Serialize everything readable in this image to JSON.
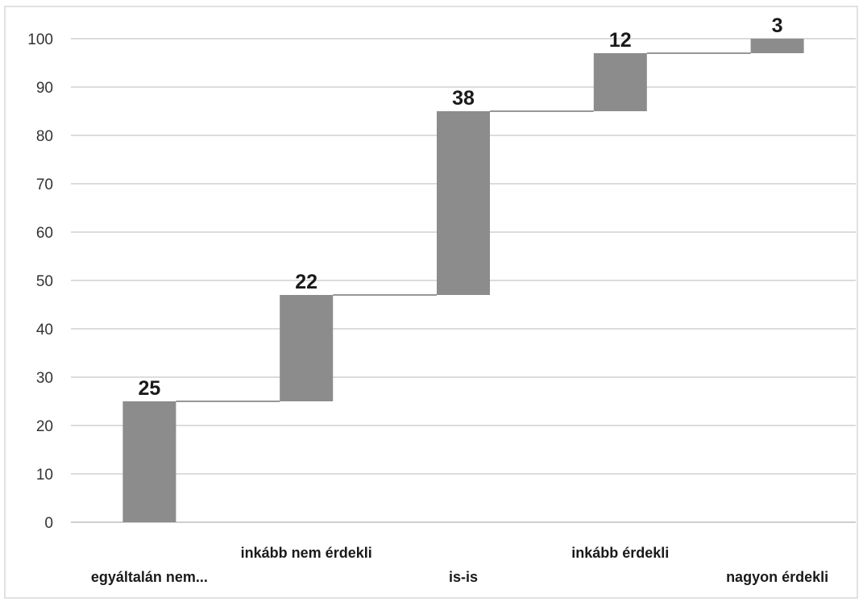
{
  "chart_data": {
    "type": "bar",
    "subtype": "waterfall",
    "title": "",
    "xlabel": "",
    "ylabel": "",
    "ylim": [
      0,
      100
    ],
    "y_ticks": [
      0,
      10,
      20,
      30,
      40,
      50,
      60,
      70,
      80,
      90,
      100
    ],
    "grid": true,
    "legend": "none",
    "categories": [
      "egyáltalán nem...",
      "inkább nem érdekli",
      "is-is",
      "inkább érdekli",
      "nagyon érdekli"
    ],
    "values": [
      25,
      22,
      38,
      12,
      3
    ],
    "data_labels": [
      "25",
      "22",
      "38",
      "12",
      "3"
    ],
    "colors": {
      "bar": "#8c8c8c",
      "connector": "#595959",
      "grid": "#d0d0d0"
    }
  }
}
